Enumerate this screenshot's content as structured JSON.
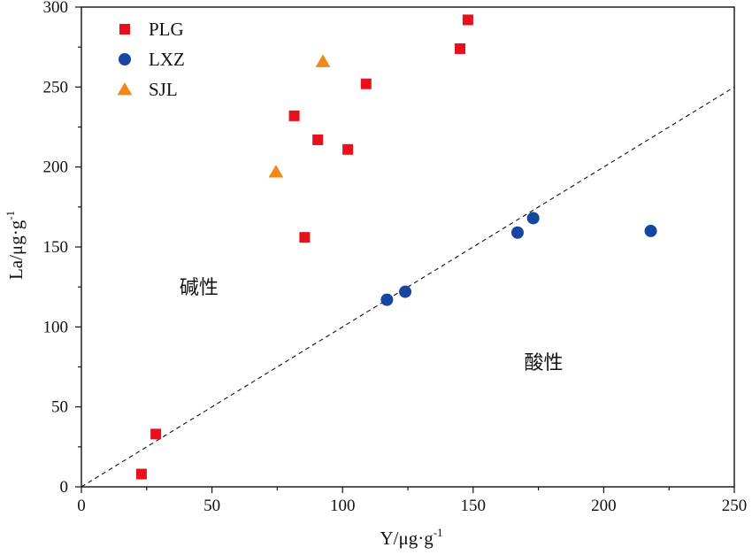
{
  "chart_data": {
    "type": "scatter",
    "xlabel": "Y/μg·g",
    "xlabel_sup": "-1",
    "ylabel": "La/μg·g",
    "ylabel_sup": "-1",
    "xlim": [
      0,
      250
    ],
    "ylim": [
      0,
      300
    ],
    "xticks": [
      0,
      50,
      100,
      150,
      200,
      250
    ],
    "yticks": [
      0,
      50,
      100,
      150,
      200,
      250,
      300
    ],
    "grid": false,
    "legend_position": "top-left",
    "series": [
      {
        "name": "PLG",
        "marker": "square",
        "color": "#e8101a",
        "points": [
          [
            23,
            8
          ],
          [
            28.5,
            33
          ],
          [
            85.5,
            156
          ],
          [
            81.5,
            232
          ],
          [
            90.5,
            217
          ],
          [
            102,
            211
          ],
          [
            109,
            252
          ],
          [
            145,
            274
          ],
          [
            148,
            292
          ]
        ]
      },
      {
        "name": "LXZ",
        "marker": "circle",
        "color": "#1746a0",
        "points": [
          [
            117,
            117
          ],
          [
            124,
            122
          ],
          [
            167,
            159
          ],
          [
            173,
            168
          ],
          [
            218,
            160
          ]
        ]
      },
      {
        "name": "SJL",
        "marker": "triangle",
        "color": "#ef8a1a",
        "points": [
          [
            74.5,
            197
          ],
          [
            92.5,
            266
          ]
        ]
      }
    ],
    "reference_line": {
      "style": "dashed",
      "from": [
        0,
        0
      ],
      "to": [
        250,
        250
      ]
    },
    "annotations": [
      {
        "text": "碱性",
        "x": 45,
        "y": 125
      },
      {
        "text": "酸性",
        "x": 177,
        "y": 78
      }
    ]
  }
}
